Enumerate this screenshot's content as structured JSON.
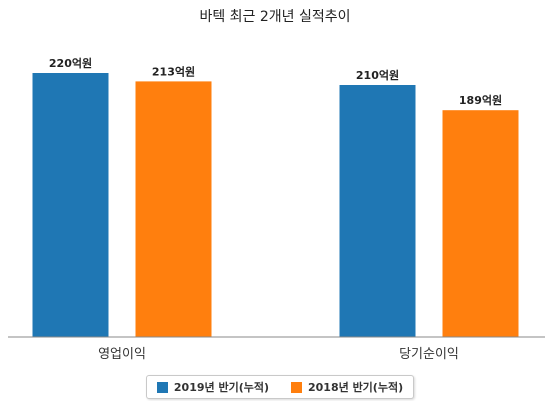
{
  "chart_data": {
    "type": "bar",
    "title": "바텍 최근 2개년 실적추이",
    "categories": [
      "영업이익",
      "당기순이익"
    ],
    "series": [
      {
        "name": "2019년 반기(누적)",
        "values": [
          220,
          210
        ],
        "labels": [
          "220억원",
          "210억원"
        ],
        "color": "#1f77b4"
      },
      {
        "name": "2018년 반기(누적)",
        "values": [
          213,
          189
        ],
        "labels": [
          "213억원",
          "189억원"
        ],
        "color": "#ff7f0e"
      }
    ],
    "ylim": [
      0,
      250
    ],
    "xlabel": "",
    "ylabel": "",
    "grid": false,
    "legend_position": "bottom"
  }
}
